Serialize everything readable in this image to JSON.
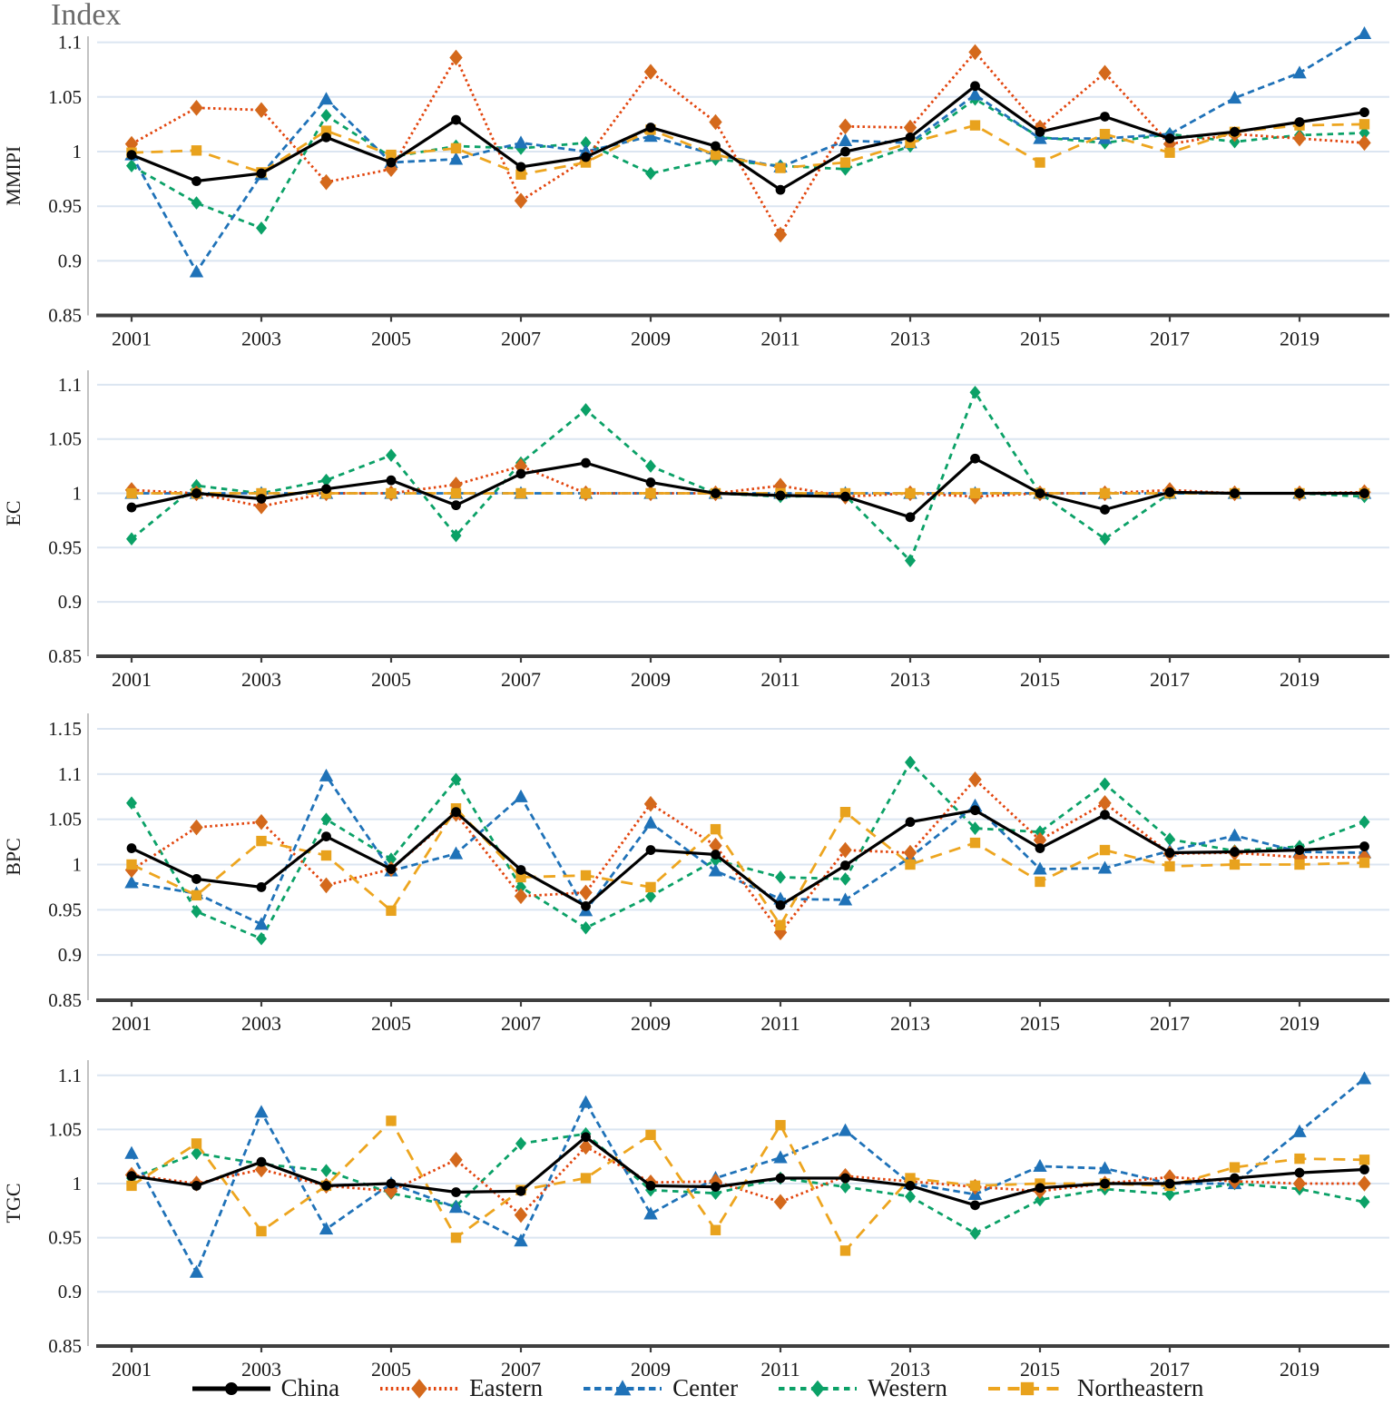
{
  "title": "Index",
  "years": [
    2001,
    2002,
    2003,
    2004,
    2005,
    2006,
    2007,
    2008,
    2009,
    2010,
    2011,
    2012,
    2013,
    2014,
    2015,
    2016,
    2017,
    2018,
    2019,
    2020
  ],
  "xticks": [
    2001,
    2003,
    2005,
    2007,
    2009,
    2011,
    2013,
    2015,
    2017,
    2019
  ],
  "draw_order": [
    "Western",
    "Center",
    "Eastern",
    "Northeastern",
    "China"
  ],
  "legend": {
    "items": [
      {
        "label": "China",
        "line_color": "#000000",
        "marker_color": "#000000",
        "marker": "circle",
        "dash": "solid",
        "width": 3.2,
        "msize": 5.4
      },
      {
        "label": "Eastern",
        "line_color": "#e2450d",
        "marker_color": "#d4691c",
        "marker": "diamond",
        "dash": "2.5 3.4",
        "width": 2.8,
        "msize": 7.2
      },
      {
        "label": "Center",
        "line_color": "#1f72b8",
        "marker_color": "#1f72b8",
        "marker": "triangle",
        "dash": "7.5 4.5",
        "width": 2.8,
        "msize": 7.4
      },
      {
        "label": "Western",
        "line_color": "#0ba167",
        "marker_color": "#0ba167",
        "marker": "diamond",
        "dash": "6.5 5.5",
        "width": 2.8,
        "msize": 6.0
      },
      {
        "label": "Northeastern",
        "line_color": "#eda51f",
        "marker_color": "#e8a21d",
        "marker": "square",
        "dash": "13 8.5",
        "width": 2.8,
        "msize": 6.2
      }
    ]
  },
  "chart_data": [
    {
      "type": "line",
      "id": "MMIPI",
      "ylabel": "MMIPI",
      "ylim": [
        0.85,
        1.1
      ],
      "yticks": [
        "1.1",
        "1.05",
        "1",
        "0.95",
        "0.9",
        "0.85"
      ],
      "series": [
        {
          "name": "China",
          "values": [
            0.997,
            0.973,
            0.98,
            1.013,
            0.99,
            1.029,
            0.986,
            0.995,
            1.022,
            1.005,
            0.965,
            1.0,
            1.013,
            1.06,
            1.018,
            1.032,
            1.012,
            1.018,
            1.027,
            1.036
          ]
        },
        {
          "name": "Eastern",
          "values": [
            1.007,
            1.04,
            1.038,
            0.972,
            0.984,
            1.086,
            0.955,
            0.993,
            1.073,
            1.027,
            0.924,
            1.023,
            1.022,
            1.091,
            1.022,
            1.072,
            1.007,
            1.016,
            1.012,
            1.008
          ]
        },
        {
          "name": "Center",
          "values": [
            0.997,
            0.89,
            0.979,
            1.048,
            0.99,
            0.993,
            1.008,
            1.0,
            1.014,
            0.997,
            0.986,
            1.01,
            1.008,
            1.052,
            1.012,
            1.012,
            1.016,
            1.049,
            1.072,
            1.108
          ]
        },
        {
          "name": "Western",
          "values": [
            0.987,
            0.953,
            0.93,
            1.033,
            0.995,
            1.005,
            1.003,
            1.008,
            0.98,
            0.993,
            0.987,
            0.984,
            1.005,
            1.048,
            1.013,
            1.008,
            1.016,
            1.009,
            1.015,
            1.017
          ]
        },
        {
          "name": "Northeastern",
          "values": [
            0.999,
            1.001,
            0.981,
            1.019,
            0.997,
            1.003,
            0.979,
            0.99,
            1.02,
            0.997,
            0.985,
            0.99,
            1.008,
            1.024,
            0.99,
            1.016,
            0.999,
            1.018,
            1.024,
            1.025
          ]
        }
      ]
    },
    {
      "type": "line",
      "id": "EC",
      "ylabel": "EC",
      "ylim": [
        0.85,
        1.1
      ],
      "yticks": [
        "1.1",
        "1.05",
        "1",
        "0.95",
        "0.9",
        "0.85"
      ],
      "series": [
        {
          "name": "China",
          "values": [
            0.987,
            1.0,
            0.995,
            1.004,
            1.012,
            0.989,
            1.018,
            1.028,
            1.01,
            1.0,
            0.998,
            0.997,
            0.978,
            1.032,
            1.0,
            0.985,
            1.001,
            1.0,
            1.0,
            1.0
          ]
        },
        {
          "name": "Eastern",
          "values": [
            1.003,
            1.0,
            0.988,
            1.0,
            1.0,
            1.008,
            1.025,
            1.0,
            1.0,
            1.0,
            1.007,
            0.997,
            1.0,
            0.997,
            1.0,
            1.0,
            1.003,
            1.0,
            1.0,
            1.001
          ]
        },
        {
          "name": "Center",
          "values": [
            1.0,
            1.0,
            1.0,
            1.0,
            1.0,
            1.0,
            1.0,
            1.0,
            1.0,
            1.0,
            1.0,
            1.0,
            1.0,
            1.0,
            1.0,
            1.0,
            1.0,
            1.0,
            1.0,
            1.0
          ]
        },
        {
          "name": "Western",
          "values": [
            0.958,
            1.007,
            1.0,
            1.012,
            1.035,
            0.961,
            1.028,
            1.077,
            1.025,
            1.0,
            0.997,
            0.998,
            0.938,
            1.093,
            1.0,
            0.958,
            1.0,
            1.0,
            1.0,
            0.997
          ]
        },
        {
          "name": "Northeastern",
          "values": [
            1.0,
            1.0,
            1.0,
            1.0,
            1.0,
            1.0,
            1.0,
            1.0,
            1.0,
            1.0,
            1.0,
            1.0,
            1.0,
            1.0,
            1.0,
            1.0,
            1.0,
            1.0,
            1.0,
            1.0
          ]
        }
      ]
    },
    {
      "type": "line",
      "id": "BPC",
      "ylabel": "BPC",
      "ylim": [
        0.85,
        1.15
      ],
      "yticks": [
        "1.15",
        "1.1",
        "1.05",
        "1",
        "0.95",
        "0.9",
        "0.85"
      ],
      "series": [
        {
          "name": "China",
          "values": [
            1.018,
            0.984,
            0.975,
            1.031,
            0.995,
            1.058,
            0.994,
            0.954,
            1.016,
            1.011,
            0.955,
            0.999,
            1.047,
            1.06,
            1.018,
            1.055,
            1.013,
            1.014,
            1.016,
            1.02
          ]
        },
        {
          "name": "Eastern",
          "values": [
            0.994,
            1.041,
            1.047,
            0.977,
            0.995,
            1.056,
            0.965,
            0.969,
            1.067,
            1.021,
            0.925,
            1.016,
            1.013,
            1.094,
            1.027,
            1.068,
            1.012,
            1.013,
            1.008,
            1.008
          ]
        },
        {
          "name": "Center",
          "values": [
            0.98,
            0.968,
            0.934,
            1.098,
            0.993,
            1.012,
            1.075,
            0.949,
            1.046,
            0.993,
            0.962,
            0.961,
            1.008,
            1.065,
            0.995,
            0.996,
            1.015,
            1.032,
            1.014,
            1.013
          ]
        },
        {
          "name": "Western",
          "values": [
            1.068,
            0.948,
            0.918,
            1.05,
            1.006,
            1.094,
            0.975,
            0.93,
            0.965,
            1.005,
            0.986,
            0.984,
            1.113,
            1.04,
            1.036,
            1.089,
            1.028,
            1.015,
            1.02,
            1.047
          ]
        },
        {
          "name": "Northeastern",
          "values": [
            1.0,
            0.966,
            1.026,
            1.01,
            0.949,
            1.062,
            0.986,
            0.988,
            0.975,
            1.039,
            0.933,
            1.058,
            1.0,
            1.024,
            0.981,
            1.016,
            0.998,
            1.0,
            1.0,
            1.002
          ]
        }
      ]
    },
    {
      "type": "line",
      "id": "TGC",
      "ylabel": "TGC",
      "ylim": [
        0.85,
        1.1
      ],
      "yticks": [
        "1.1",
        "1.05",
        "1",
        "0.95",
        "0.9",
        "0.85"
      ],
      "series": [
        {
          "name": "China",
          "values": [
            1.007,
            0.998,
            1.02,
            0.998,
            1.0,
            0.992,
            0.993,
            1.043,
            0.998,
            0.997,
            1.005,
            1.005,
            0.998,
            0.98,
            0.996,
            1.0,
            1.0,
            1.005,
            1.01,
            1.013
          ]
        },
        {
          "name": "Eastern",
          "values": [
            1.008,
            1.0,
            1.013,
            0.998,
            0.993,
            1.022,
            0.971,
            1.034,
            1.001,
            1.002,
            0.983,
            1.007,
            1.002,
            0.997,
            0.993,
            1.0,
            1.006,
            1.002,
            1.0,
            1.0
          ]
        },
        {
          "name": "Center",
          "values": [
            1.028,
            0.918,
            1.066,
            0.958,
            1.0,
            0.978,
            0.947,
            1.075,
            0.972,
            1.005,
            1.024,
            1.049,
            1.0,
            0.99,
            1.016,
            1.014,
            1.0,
            1.0,
            1.048,
            1.097
          ]
        },
        {
          "name": "Western",
          "values": [
            1.005,
            1.028,
            1.018,
            1.012,
            0.991,
            0.979,
            1.037,
            1.046,
            0.994,
            0.991,
            1.005,
            0.997,
            0.988,
            0.954,
            0.985,
            0.995,
            0.99,
            1.0,
            0.995,
            0.983
          ]
        },
        {
          "name": "Northeastern",
          "values": [
            0.998,
            1.037,
            0.956,
            0.998,
            1.058,
            0.95,
            0.994,
            1.005,
            1.045,
            0.957,
            1.054,
            0.938,
            1.005,
            0.998,
            1.0,
            1.0,
            0.998,
            1.015,
            1.023,
            1.022
          ]
        }
      ]
    }
  ]
}
